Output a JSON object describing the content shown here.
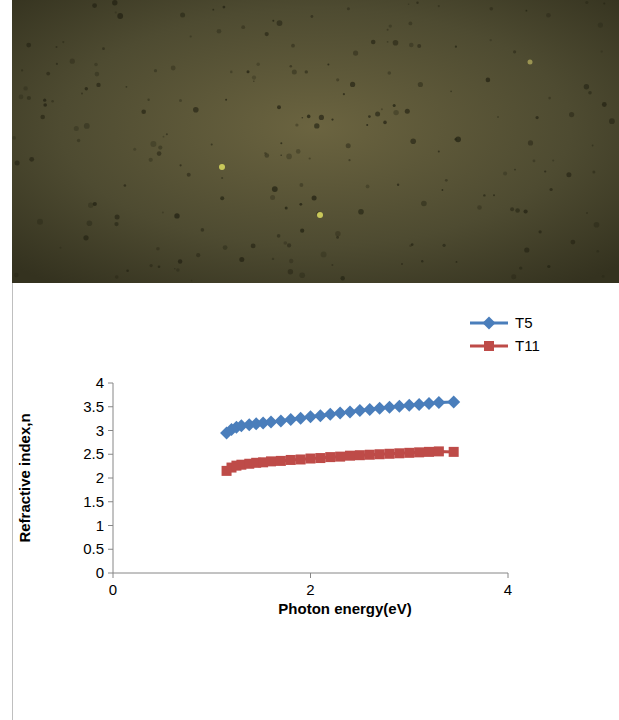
{
  "chart_data": {
    "type": "line",
    "x_label": "Photon energy(eV)",
    "y_label": "Refractive index,n",
    "xlim": [
      0,
      4
    ],
    "xticks": [
      0,
      2,
      4
    ],
    "ylim": [
      0,
      4
    ],
    "yticks": [
      0,
      0.5,
      1,
      1.5,
      2,
      2.5,
      3,
      3.5,
      4
    ],
    "grid": false,
    "legend": "top-right",
    "x": [
      1.15,
      1.2,
      1.25,
      1.3,
      1.38,
      1.45,
      1.52,
      1.6,
      1.7,
      1.8,
      1.9,
      2.0,
      2.1,
      2.2,
      2.3,
      2.4,
      2.5,
      2.6,
      2.7,
      2.8,
      2.9,
      3.0,
      3.1,
      3.2,
      3.3,
      3.45
    ],
    "series": [
      {
        "name": "T5",
        "color": "#4a7ebb",
        "marker": "diamond",
        "line_style": "solid",
        "values": [
          2.95,
          3.02,
          3.07,
          3.1,
          3.12,
          3.14,
          3.16,
          3.18,
          3.2,
          3.23,
          3.26,
          3.29,
          3.31,
          3.34,
          3.37,
          3.39,
          3.42,
          3.44,
          3.47,
          3.49,
          3.51,
          3.53,
          3.55,
          3.57,
          3.59,
          3.6
        ]
      },
      {
        "name": "T11",
        "color": "#be4b48",
        "marker": "square",
        "line_style": "solid",
        "values": [
          2.15,
          2.22,
          2.26,
          2.28,
          2.3,
          2.32,
          2.33,
          2.35,
          2.36,
          2.38,
          2.39,
          2.41,
          2.42,
          2.44,
          2.45,
          2.47,
          2.48,
          2.49,
          2.5,
          2.51,
          2.52,
          2.53,
          2.54,
          2.55,
          2.56,
          2.55
        ]
      }
    ]
  }
}
